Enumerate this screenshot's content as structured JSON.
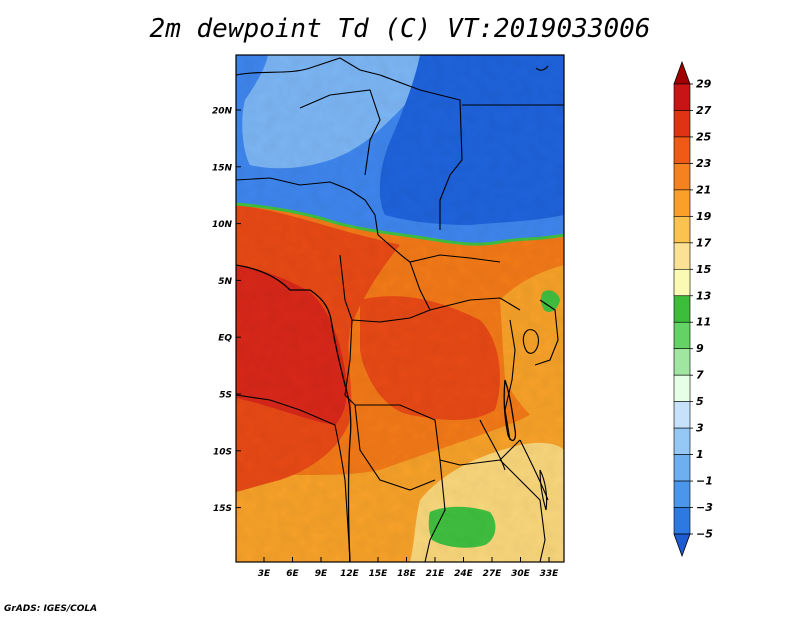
{
  "title": "2m dewpoint Td (C) VT:2019033006",
  "credit": "GrADS: IGES/COLA",
  "map": {
    "lat_labels": [
      "20N",
      "15N",
      "10N",
      "5N",
      "EQ",
      "5S",
      "10S",
      "15S"
    ],
    "lon_labels": [
      "3E",
      "6E",
      "9E",
      "12E",
      "15E",
      "18E",
      "21E",
      "24E",
      "27E",
      "30E",
      "33E"
    ]
  },
  "colorbar": {
    "labels": [
      "29",
      "27",
      "25",
      "23",
      "21",
      "19",
      "17",
      "15",
      "13",
      "11",
      "9",
      "7",
      "5",
      "3",
      "1",
      "−1",
      "−3",
      "−5"
    ],
    "colors": [
      "#a00000",
      "#c81414",
      "#e03214",
      "#f05a14",
      "#f5821e",
      "#faa028",
      "#fac350",
      "#fae196",
      "#fafab4",
      "#3cbe3c",
      "#64d264",
      "#a0e6a0",
      "#e6ffe6",
      "#c8e1fa",
      "#96c8f5",
      "#6eaff0",
      "#4b96eb",
      "#2d78e1",
      "#1e5ad2"
    ]
  },
  "colors": {
    "warm_dark": "#d8281a",
    "warm": "#e84a16",
    "orange": "#f37a18",
    "amber": "#f7a22a",
    "light": "#f9d77c",
    "green": "#40c040",
    "blue_dark": "#1f63dc",
    "blue": "#3f86ee",
    "blue_light": "#7cb6f5"
  }
}
